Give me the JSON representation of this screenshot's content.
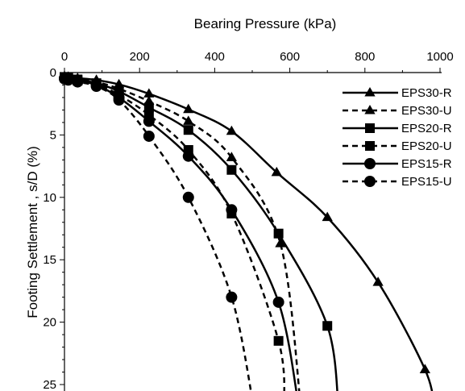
{
  "chart_data": {
    "type": "line",
    "xlabel": "Bearing Pressure (kPa)",
    "ylabel": "Footing Settlement , s/D (%)",
    "x_axis_position": "top",
    "y_axis_inverted": true,
    "xlim": [
      0,
      1000
    ],
    "ylim": [
      0,
      25
    ],
    "x_ticks": [
      "0",
      "200",
      "400",
      "600",
      "800",
      "1000"
    ],
    "y_ticks": [
      "0",
      "5",
      "10",
      "15",
      "20",
      "25"
    ],
    "grid": false,
    "legend_position": "top-right",
    "series": [
      {
        "name": "EPS30-R",
        "marker": "triangle",
        "line": "solid",
        "points": [
          [
            0,
            0.3
          ],
          [
            10,
            0.35
          ],
          [
            35,
            0.45
          ],
          [
            85,
            0.6
          ],
          [
            145,
            0.95
          ],
          [
            225,
            1.7
          ],
          [
            330,
            2.95
          ],
          [
            445,
            4.7
          ],
          [
            565,
            8.0
          ],
          [
            700,
            11.6
          ],
          [
            835,
            16.8
          ],
          [
            960,
            23.8
          ]
        ],
        "extend_to": [
          985,
          27
        ]
      },
      {
        "name": "EPS30-U",
        "marker": "triangle",
        "line": "dashed",
        "points": [
          [
            0,
            0.3
          ],
          [
            10,
            0.4
          ],
          [
            35,
            0.55
          ],
          [
            85,
            0.75
          ],
          [
            145,
            1.3
          ],
          [
            225,
            2.3
          ],
          [
            330,
            3.9
          ],
          [
            445,
            6.8
          ],
          [
            575,
            13.7
          ]
        ],
        "extend_to": [
          630,
          27
        ]
      },
      {
        "name": "EPS20-R",
        "marker": "square",
        "line": "solid",
        "points": [
          [
            0,
            0.35
          ],
          [
            10,
            0.4
          ],
          [
            35,
            0.55
          ],
          [
            85,
            0.85
          ],
          [
            145,
            1.5
          ],
          [
            225,
            2.8
          ],
          [
            330,
            4.6
          ],
          [
            445,
            7.8
          ],
          [
            570,
            12.9
          ],
          [
            700,
            20.3
          ]
        ],
        "extend_to": [
          730,
          27
        ]
      },
      {
        "name": "EPS20-U",
        "marker": "square",
        "line": "dashed",
        "points": [
          [
            0,
            0.4
          ],
          [
            10,
            0.5
          ],
          [
            35,
            0.65
          ],
          [
            85,
            0.9
          ],
          [
            145,
            1.8
          ],
          [
            225,
            3.4
          ],
          [
            330,
            6.2
          ],
          [
            445,
            11.3
          ],
          [
            570,
            21.5
          ]
        ],
        "extend_to": [
          585,
          27
        ]
      },
      {
        "name": "EPS15-R",
        "marker": "circle",
        "line": "solid",
        "points": [
          [
            0,
            0.45
          ],
          [
            10,
            0.5
          ],
          [
            35,
            0.65
          ],
          [
            85,
            1.0
          ],
          [
            145,
            2.0
          ],
          [
            225,
            3.9
          ],
          [
            330,
            6.7
          ],
          [
            445,
            11.0
          ],
          [
            570,
            18.4
          ]
        ],
        "extend_to": [
          625,
          27
        ]
      },
      {
        "name": "EPS15-U",
        "marker": "circle",
        "line": "dashed",
        "points": [
          [
            0,
            0.5
          ],
          [
            10,
            0.6
          ],
          [
            35,
            0.75
          ],
          [
            85,
            1.1
          ],
          [
            145,
            2.2
          ],
          [
            225,
            5.1
          ],
          [
            330,
            10.0
          ],
          [
            445,
            18.0
          ]
        ],
        "extend_to": [
          505,
          27
        ]
      }
    ]
  }
}
